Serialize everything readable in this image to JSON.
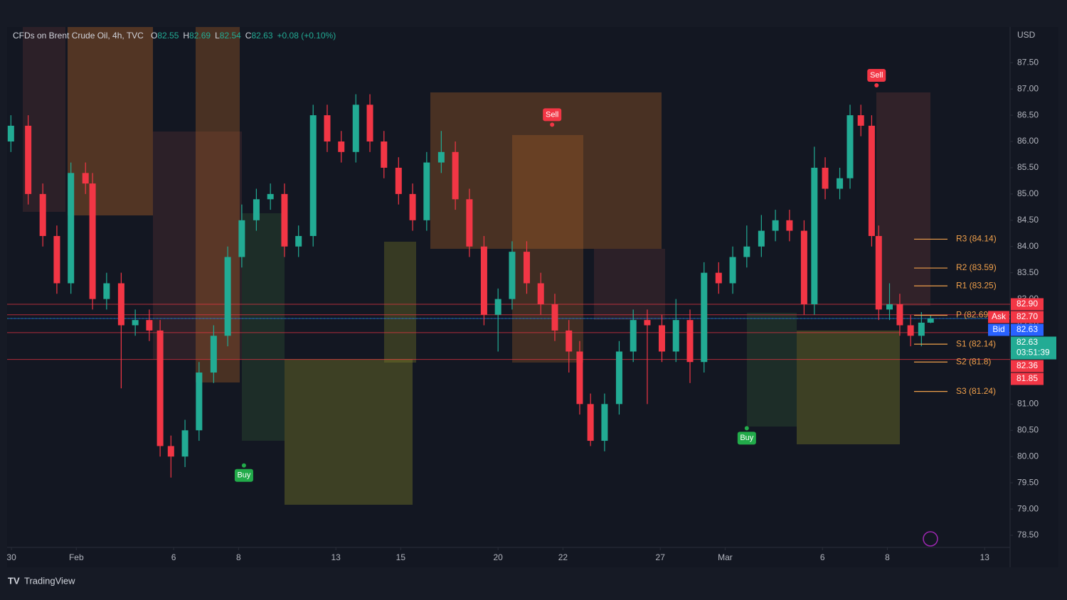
{
  "chart_data": {
    "type": "candlestick",
    "legend": {
      "symbol": "CFDs on Brent Crude Oil, 4h, TVC",
      "ohlc": [
        {
          "key": "O",
          "value": 82.55
        },
        {
          "key": "H",
          "value": 82.69
        },
        {
          "key": "L",
          "value": 82.54
        },
        {
          "key": "C",
          "value": 82.63
        }
      ],
      "change": "+0.08 (+0.10%)"
    },
    "currency": "USD",
    "brand": "TradingView",
    "up_color": "#22ab94",
    "down_color": "#f23645",
    "x": [
      0.9,
      4.1,
      6.8,
      9.4,
      12.0,
      14.7,
      16.0,
      18.6,
      21.3,
      23.9,
      26.5,
      28.5,
      30.5,
      33.1,
      35.7,
      38.4,
      41.0,
      43.6,
      46.3,
      48.9,
      51.5,
      54.1,
      56.8,
      59.4,
      62.0,
      64.7,
      67.3,
      69.9,
      72.6,
      75.2,
      77.8,
      80.5,
      83.1,
      85.7,
      88.4,
      91.0,
      93.6,
      96.3,
      98.9,
      101.5,
      104.1,
      106.1,
      108.1,
      110.7,
      113.4,
      116.0,
      118.6,
      121.3,
      123.9,
      126.5,
      129.1,
      131.8,
      134.4,
      137.0,
      139.7,
      142.3,
      144.9,
      147.6,
      149.5,
      151.5,
      154.2,
      156.1,
      158.1,
      160.1,
      161.4,
      163.4,
      165.3,
      167.3,
      169.3,
      171.0
    ],
    "open": [
      86.0,
      86.3,
      85.0,
      84.2,
      83.3,
      85.4,
      85.2,
      83.0,
      83.3,
      82.5,
      82.6,
      82.4,
      80.2,
      80.0,
      80.5,
      81.6,
      82.3,
      83.8,
      84.5,
      84.9,
      85.0,
      84.0,
      84.2,
      86.5,
      86.0,
      85.8,
      86.7,
      86.0,
      85.5,
      85.0,
      84.5,
      85.6,
      85.8,
      84.9,
      84.0,
      82.7,
      83.0,
      83.9,
      83.3,
      82.9,
      82.4,
      82.0,
      81.0,
      80.3,
      81.0,
      82.0,
      82.6,
      82.5,
      82.0,
      82.6,
      81.8,
      83.5,
      83.3,
      83.8,
      84.0,
      84.3,
      84.5,
      84.3,
      82.9,
      85.5,
      85.1,
      85.3,
      86.5,
      86.3,
      84.2,
      82.8,
      82.9,
      82.5,
      82.3,
      82.55
    ],
    "high": [
      86.5,
      86.5,
      85.2,
      84.4,
      85.6,
      85.6,
      85.4,
      83.5,
      83.5,
      82.8,
      82.8,
      82.6,
      80.4,
      80.7,
      81.8,
      82.5,
      84.0,
      84.8,
      85.1,
      85.2,
      85.2,
      84.4,
      86.7,
      86.7,
      86.2,
      86.9,
      86.9,
      86.2,
      85.7,
      85.2,
      85.8,
      86.2,
      86.0,
      85.1,
      84.2,
      83.2,
      84.1,
      84.1,
      83.5,
      83.1,
      82.6,
      82.2,
      81.2,
      81.2,
      82.2,
      82.8,
      82.8,
      82.7,
      83.0,
      82.8,
      83.7,
      83.7,
      84.0,
      84.4,
      84.6,
      84.7,
      84.7,
      84.5,
      85.9,
      85.7,
      85.5,
      86.7,
      86.7,
      86.5,
      84.4,
      83.3,
      83.1,
      82.7,
      82.75,
      82.69
    ],
    "low": [
      85.8,
      84.8,
      84.0,
      83.1,
      83.1,
      85.0,
      82.8,
      82.8,
      81.3,
      82.3,
      82.2,
      80.0,
      79.6,
      79.8,
      80.3,
      81.4,
      82.1,
      83.6,
      84.3,
      84.7,
      83.8,
      83.8,
      84.0,
      85.8,
      85.6,
      85.6,
      85.8,
      85.3,
      84.8,
      84.3,
      84.3,
      85.4,
      84.7,
      83.8,
      82.5,
      82.0,
      82.8,
      83.1,
      82.7,
      82.2,
      81.6,
      80.8,
      80.2,
      80.1,
      80.8,
      81.8,
      81.0,
      81.8,
      81.8,
      81.4,
      81.6,
      83.1,
      83.1,
      83.6,
      83.8,
      84.1,
      84.1,
      82.7,
      82.7,
      84.9,
      84.9,
      85.1,
      86.1,
      84.0,
      82.6,
      82.6,
      82.3,
      82.1,
      82.1,
      82.54
    ],
    "close": [
      86.3,
      85.0,
      84.2,
      83.3,
      85.4,
      85.2,
      83.0,
      83.3,
      82.5,
      82.6,
      82.4,
      80.2,
      80.0,
      80.5,
      81.6,
      82.3,
      83.8,
      84.5,
      84.9,
      85.0,
      84.0,
      84.2,
      86.5,
      86.0,
      85.8,
      86.7,
      86.0,
      85.5,
      85.0,
      84.5,
      85.6,
      85.8,
      84.9,
      84.0,
      82.7,
      83.0,
      83.9,
      83.3,
      82.9,
      82.4,
      82.0,
      81.0,
      80.3,
      81.0,
      82.0,
      82.6,
      82.5,
      82.0,
      82.6,
      81.8,
      83.5,
      83.3,
      83.8,
      84.0,
      84.3,
      84.5,
      84.3,
      82.9,
      85.5,
      85.1,
      85.3,
      86.5,
      86.3,
      84.2,
      82.8,
      82.9,
      82.5,
      82.3,
      82.55,
      82.63
    ],
    "xlim": [
      0.2,
      185.7
    ],
    "xticks": [
      {
        "value": 1,
        "label": "30"
      },
      {
        "value": 13,
        "label": "Feb"
      },
      {
        "value": 31,
        "label": "6"
      },
      {
        "value": 43,
        "label": "8"
      },
      {
        "value": 61,
        "label": "13"
      },
      {
        "value": 73,
        "label": "15"
      },
      {
        "value": 91,
        "label": "20"
      },
      {
        "value": 103,
        "label": "22"
      },
      {
        "value": 121,
        "label": "27"
      },
      {
        "value": 133,
        "label": "Mar"
      },
      {
        "value": 151,
        "label": "6"
      },
      {
        "value": 163,
        "label": "8"
      },
      {
        "value": 181,
        "label": "13"
      }
    ],
    "ylim": [
      78.27,
      88.18
    ],
    "yticks": [
      {
        "value": 78.5,
        "label": "78.50"
      },
      {
        "value": 79,
        "label": "79.00"
      },
      {
        "value": 79.5,
        "label": "79.50"
      },
      {
        "value": 80,
        "label": "80.00"
      },
      {
        "value": 80.5,
        "label": "80.50"
      },
      {
        "value": 81,
        "label": "81.00"
      },
      {
        "value": 81.5,
        "label": "81.50"
      },
      {
        "value": 82,
        "label": "82.00"
      },
      {
        "value": 82.5,
        "label": "82.50"
      },
      {
        "value": 83,
        "label": "83.00"
      },
      {
        "value": 83.5,
        "label": "83.50"
      },
      {
        "value": 84,
        "label": "84.00"
      },
      {
        "value": 84.5,
        "label": "84.50"
      },
      {
        "value": 85,
        "label": "85.00"
      },
      {
        "value": 85.5,
        "label": "85.50"
      },
      {
        "value": 86,
        "label": "86.00"
      },
      {
        "value": 86.5,
        "label": "86.50"
      },
      {
        "value": 87,
        "label": "87.00"
      },
      {
        "value": 87.5,
        "label": "87.50"
      }
    ],
    "pivots": [
      {
        "label": "R3 (84.14)",
        "value": 84.14
      },
      {
        "label": "R2 (83.59)",
        "value": 83.59
      },
      {
        "label": "R1 (83.25)",
        "value": 83.25
      },
      {
        "label": "P (82.69)",
        "value": 82.69
      },
      {
        "label": "S1 (82.14)",
        "value": 82.14
      },
      {
        "label": "S2 (81.8)",
        "value": 81.8
      },
      {
        "label": "S3 (81.24)",
        "value": 81.24
      }
    ],
    "pivot_color": "#f0a04b",
    "signals": [
      {
        "label": "Buy",
        "x": 44,
        "value": 79.83,
        "color": "#22ab4a"
      },
      {
        "label": "Sell",
        "x": 101,
        "value": 86.32,
        "color": "#f23645"
      },
      {
        "label": "Buy",
        "x": 137,
        "value": 80.54,
        "color": "#22ab4a"
      },
      {
        "label": "Sell",
        "x": 161,
        "value": 87.07,
        "color": "#f23645"
      }
    ],
    "price_badges": [
      {
        "value": 82.9,
        "label": "82.90",
        "color": "#f23645"
      },
      {
        "tag": "Ask",
        "value": 82.7,
        "label": "82.70",
        "color": "#f23645"
      },
      {
        "tag": "Bid",
        "value": 82.63,
        "label": "82.63",
        "color": "#2962ff"
      },
      {
        "value": 82.63,
        "label": "82.63",
        "timer": "03:51:39",
        "color": "#22ab94"
      },
      {
        "value": 82.36,
        "label": "82.36",
        "color": "#f23645"
      },
      {
        "value": 81.85,
        "label": "81.85",
        "color": "#f23645"
      }
    ]
  }
}
